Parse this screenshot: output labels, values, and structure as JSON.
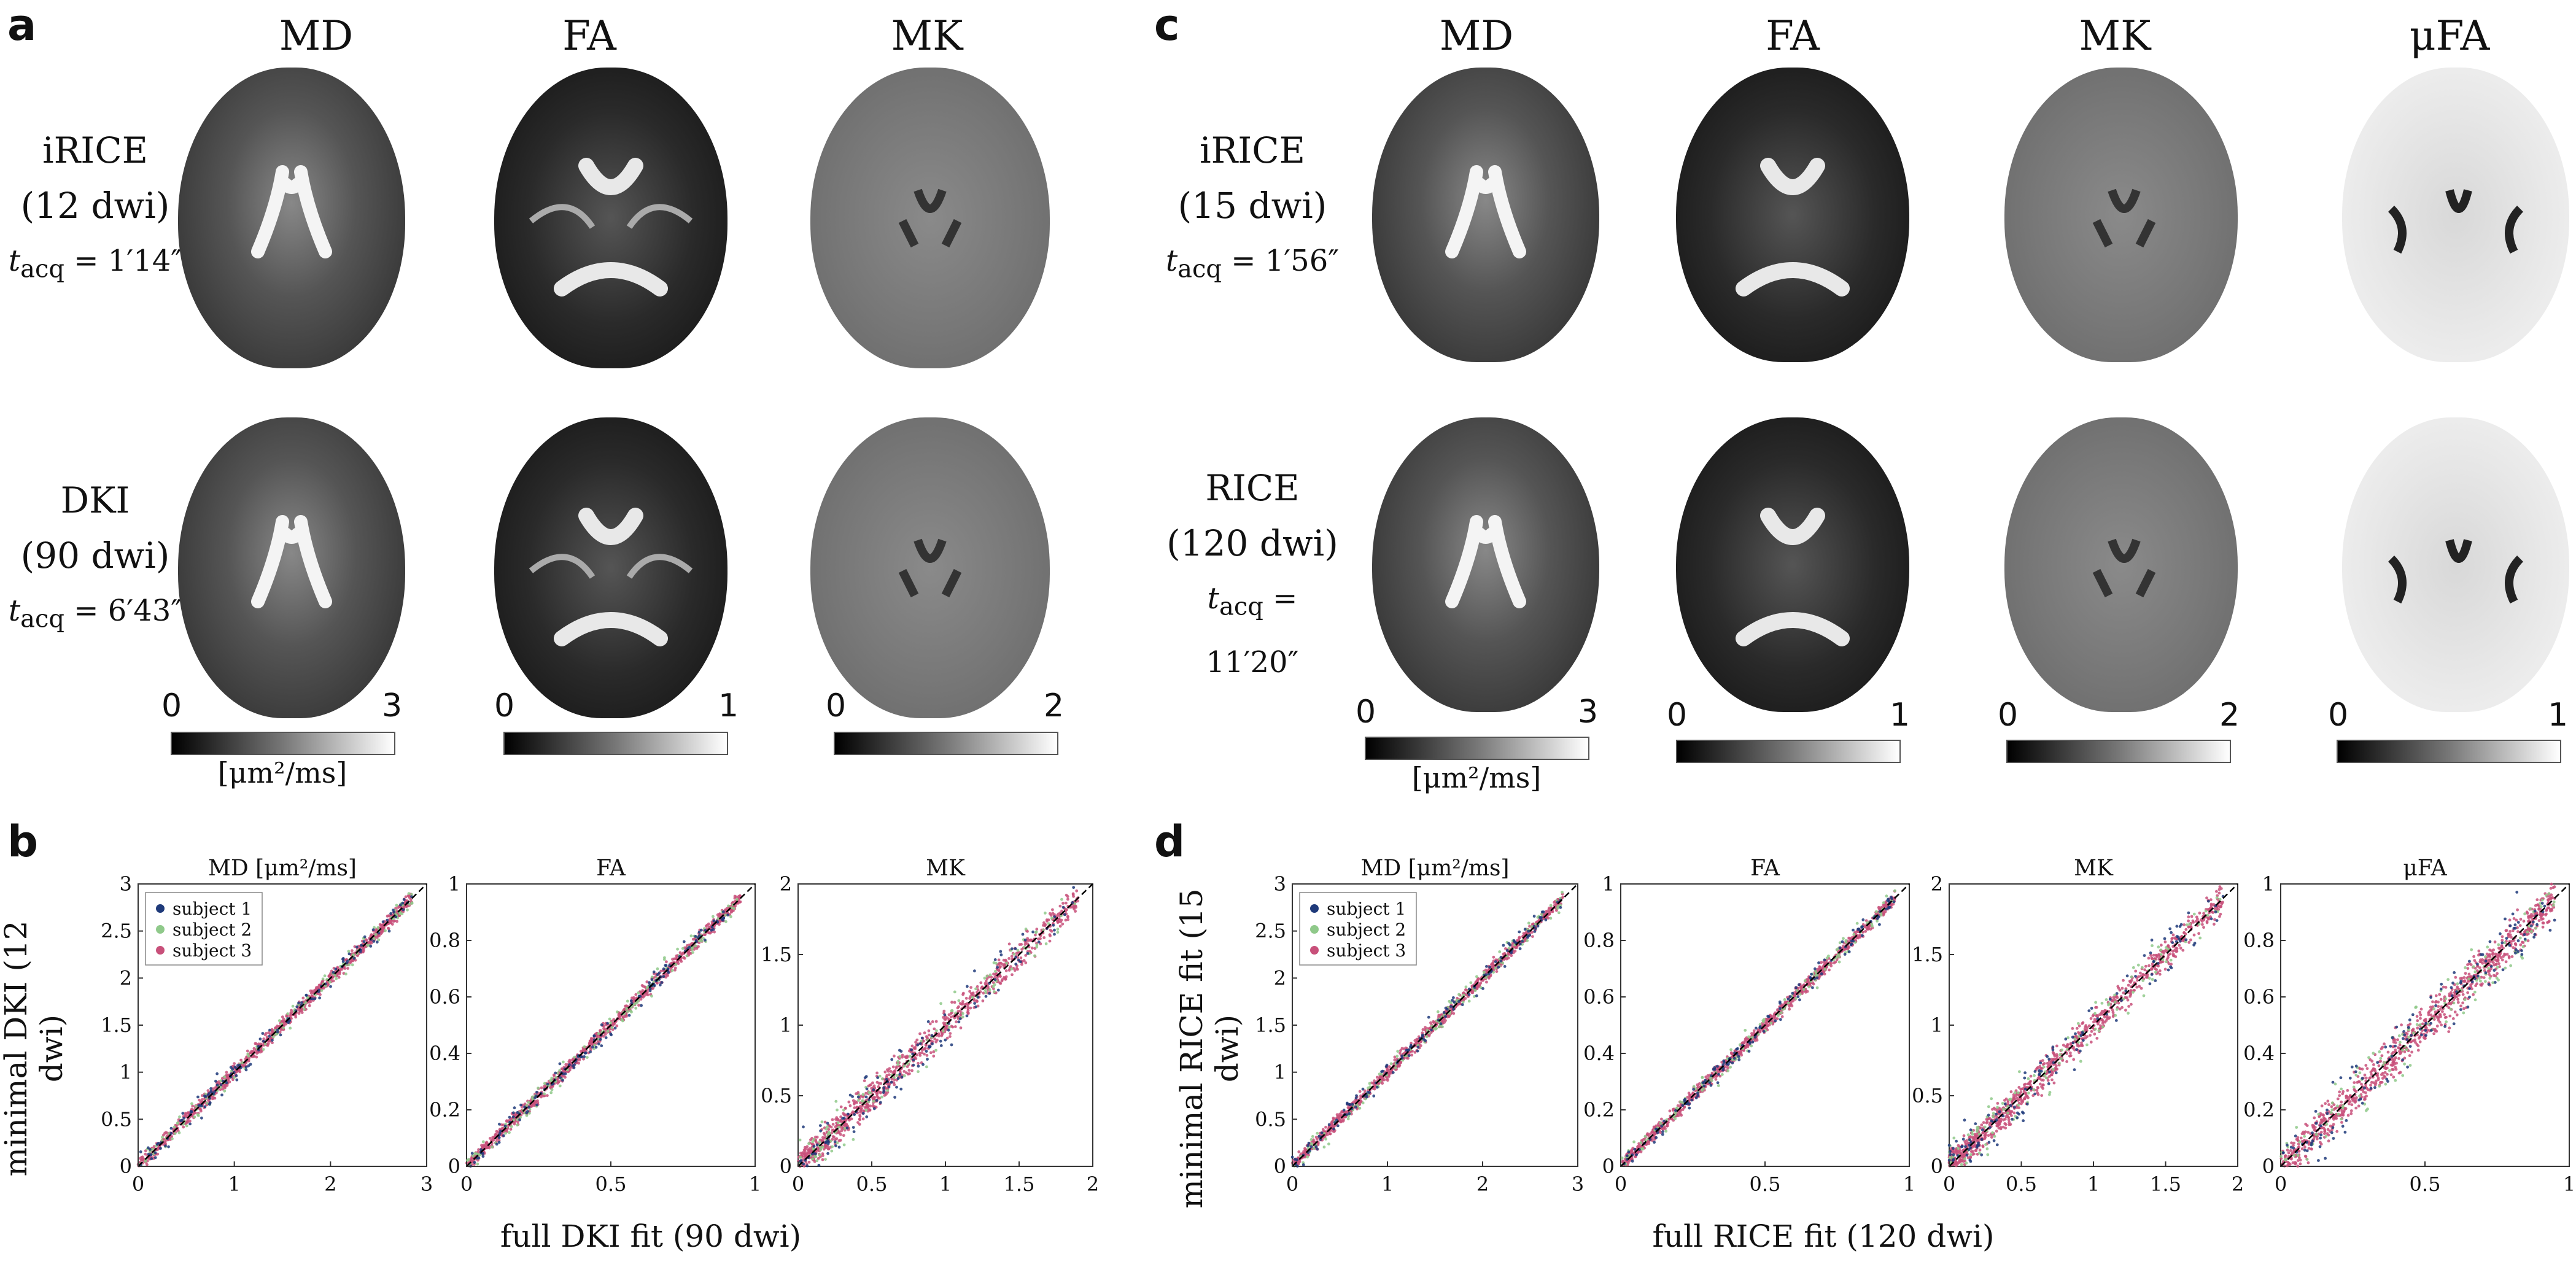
{
  "panels": {
    "a": {
      "letter": "a",
      "columns": [
        "MD",
        "FA",
        "MK"
      ],
      "rows": [
        {
          "method": "iRICE",
          "dwi": "(12 dwi)",
          "tacq_label": "t",
          "tacq_sub": "acq",
          "tacq_value": "= 1′14″"
        },
        {
          "method": "DKI",
          "dwi": "(90 dwi)",
          "tacq_label": "t",
          "tacq_sub": "acq",
          "tacq_value": "= 6′43″"
        }
      ],
      "colorbars": [
        {
          "min": "0",
          "max": "3",
          "unit": "[μm²/ms]"
        },
        {
          "min": "0",
          "max": "1",
          "unit": ""
        },
        {
          "min": "0",
          "max": "2",
          "unit": ""
        }
      ]
    },
    "c": {
      "letter": "c",
      "columns": [
        "MD",
        "FA",
        "MK",
        "μFA"
      ],
      "rows": [
        {
          "method": "iRICE",
          "dwi": "(15 dwi)",
          "tacq_label": "t",
          "tacq_sub": "acq",
          "tacq_value": "= 1′56″"
        },
        {
          "method": "RICE",
          "dwi": "(120 dwi)",
          "tacq_label": "t",
          "tacq_sub": "acq",
          "tacq_value": "= 11′20″"
        }
      ],
      "colorbars": [
        {
          "min": "0",
          "max": "3",
          "unit": "[μm²/ms]"
        },
        {
          "min": "0",
          "max": "1",
          "unit": ""
        },
        {
          "min": "0",
          "max": "2",
          "unit": ""
        },
        {
          "min": "0",
          "max": "1",
          "unit": ""
        }
      ]
    },
    "b": {
      "letter": "b",
      "ylabel": "minimal DKI (12 dwi)",
      "xlabel": "full DKI fit (90 dwi)"
    },
    "d": {
      "letter": "d",
      "ylabel": "minimal RICE fit (15 dwi)",
      "xlabel": "full RICE fit (120 dwi)"
    }
  },
  "colors": {
    "subject1": "#1f3a7a",
    "subject2": "#8fc98a",
    "subject3": "#c8507a"
  },
  "chart_data": [
    {
      "type": "scatter",
      "panel": "b",
      "title": "MD [μm²/ms]",
      "xlim": [
        0,
        3
      ],
      "ylim": [
        0,
        3
      ],
      "xticks": [
        "0",
        "1",
        "2",
        "3"
      ],
      "yticks": [
        "0",
        "0.5",
        "1",
        "1.5",
        "2",
        "2.5",
        "3"
      ],
      "legend": [
        "subject 1",
        "subject 2",
        "subject 3"
      ],
      "legend_position": "top-left",
      "identity_line": true
    },
    {
      "type": "scatter",
      "panel": "b",
      "title": "FA",
      "xlim": [
        0,
        1
      ],
      "ylim": [
        0,
        1
      ],
      "xticks": [
        "0",
        "0.5",
        "1"
      ],
      "yticks": [
        "0",
        "0.2",
        "0.4",
        "0.6",
        "0.8",
        "1"
      ],
      "identity_line": true
    },
    {
      "type": "scatter",
      "panel": "b",
      "title": "MK",
      "xlim": [
        0,
        2
      ],
      "ylim": [
        0,
        2
      ],
      "xticks": [
        "0",
        "0.5",
        "1",
        "1.5",
        "2"
      ],
      "yticks": [
        "0",
        "0.5",
        "1",
        "1.5",
        "2"
      ],
      "identity_line": true
    },
    {
      "type": "scatter",
      "panel": "d",
      "title": "MD [μm²/ms]",
      "xlim": [
        0,
        3
      ],
      "ylim": [
        0,
        3
      ],
      "xticks": [
        "0",
        "1",
        "2",
        "3"
      ],
      "yticks": [
        "0",
        "0.5",
        "1",
        "1.5",
        "2",
        "2.5",
        "3"
      ],
      "legend": [
        "subject 1",
        "subject 2",
        "subject 3"
      ],
      "legend_position": "top-left",
      "identity_line": true
    },
    {
      "type": "scatter",
      "panel": "d",
      "title": "FA",
      "xlim": [
        0,
        1
      ],
      "ylim": [
        0,
        1
      ],
      "xticks": [
        "0",
        "0.5",
        "1"
      ],
      "yticks": [
        "0",
        "0.2",
        "0.4",
        "0.6",
        "0.8",
        "1"
      ],
      "identity_line": true
    },
    {
      "type": "scatter",
      "panel": "d",
      "title": "MK",
      "xlim": [
        0,
        2
      ],
      "ylim": [
        0,
        2
      ],
      "xticks": [
        "0",
        "0.5",
        "1",
        "1.5",
        "2"
      ],
      "yticks": [
        "0",
        "0.5",
        "1",
        "1.5",
        "2"
      ],
      "identity_line": true
    },
    {
      "type": "scatter",
      "panel": "d",
      "title": "μFA",
      "xlim": [
        0,
        1
      ],
      "ylim": [
        0,
        1
      ],
      "xticks": [
        "0",
        "0.5",
        "1"
      ],
      "yticks": [
        "0",
        "0.2",
        "0.4",
        "0.6",
        "0.8",
        "1"
      ],
      "identity_line": true
    }
  ]
}
